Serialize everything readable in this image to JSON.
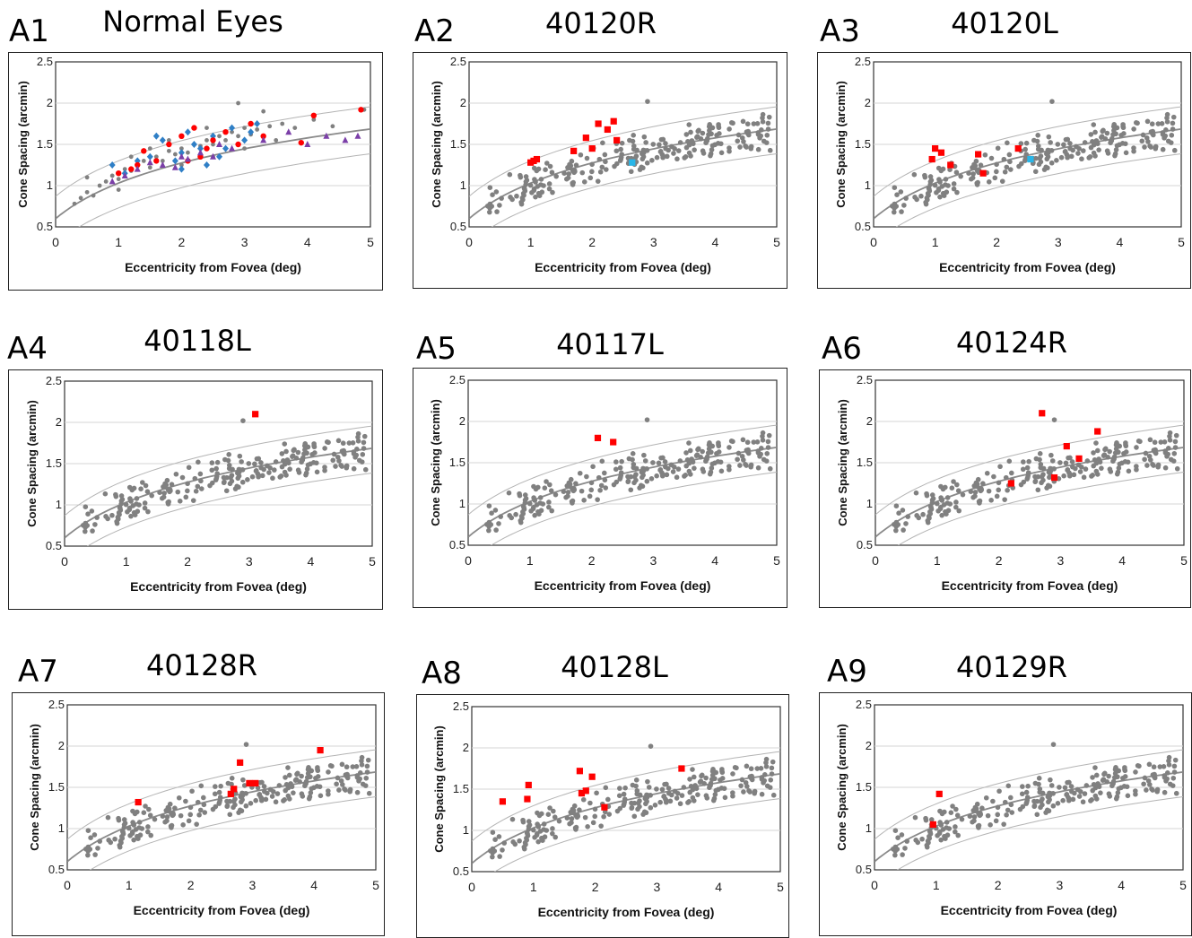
{
  "colors": {
    "normal": "#808080",
    "fit": "#8a8a8a",
    "band": "#b4b4b4",
    "patient": "#ff0000",
    "highlight": "#29b6e8",
    "blue": "#2f7fc6",
    "purple": "#7b3fa8"
  },
  "chart_data": [
    {
      "type": "scatter",
      "panel": "A1",
      "title": "Normal Eyes",
      "xlabel": "Eccentricity from Fovea (deg)",
      "ylabel": "Cone Spacing (arcmin)",
      "xlim": [
        0,
        5
      ],
      "ylim": [
        0.5,
        2.5
      ],
      "xticks": [
        "0",
        "1",
        "2",
        "3",
        "4",
        "5"
      ],
      "yticks": [
        "0.5",
        "1",
        "1.5",
        "2",
        "2.5"
      ],
      "grid": true,
      "series": [
        {
          "marker": "circle",
          "color": "#808080",
          "points": [
            [
              0.3,
              0.78
            ],
            [
              0.4,
              0.85
            ],
            [
              0.5,
              0.92
            ],
            [
              0.6,
              0.88
            ],
            [
              0.7,
              1.0
            ],
            [
              0.8,
              1.05
            ],
            [
              0.9,
              1.12
            ],
            [
              1.0,
              1.08
            ],
            [
              1.1,
              1.2
            ],
            [
              1.2,
              1.18
            ],
            [
              1.3,
              1.25
            ],
            [
              1.4,
              1.3
            ],
            [
              1.5,
              1.22
            ],
            [
              1.6,
              1.35
            ],
            [
              1.7,
              1.3
            ],
            [
              1.8,
              1.42
            ],
            [
              1.9,
              1.38
            ],
            [
              2.0,
              1.45
            ],
            [
              2.1,
              1.4
            ],
            [
              2.2,
              1.5
            ],
            [
              2.3,
              1.48
            ],
            [
              2.4,
              1.55
            ],
            [
              2.5,
              1.5
            ],
            [
              2.6,
              1.6
            ],
            [
              2.7,
              1.55
            ],
            [
              2.8,
              1.65
            ],
            [
              2.9,
              1.6
            ],
            [
              3.0,
              1.7
            ],
            [
              3.1,
              1.62
            ],
            [
              3.2,
              1.68
            ],
            [
              3.4,
              1.72
            ],
            [
              3.6,
              1.75
            ],
            [
              3.8,
              1.7
            ],
            [
              4.1,
              1.8
            ],
            [
              4.4,
              1.72
            ],
            [
              4.9,
              1.92
            ],
            [
              0.5,
              1.1
            ],
            [
              1.0,
              0.95
            ],
            [
              1.5,
              1.45
            ],
            [
              2.0,
              1.25
            ],
            [
              2.5,
              1.35
            ],
            [
              3.0,
              1.45
            ],
            [
              2.9,
              2.0
            ],
            [
              3.5,
              1.55
            ],
            [
              1.2,
              1.35
            ],
            [
              1.8,
              1.55
            ],
            [
              2.4,
              1.7
            ],
            [
              3.3,
              1.9
            ]
          ]
        },
        {
          "marker": "diamond",
          "color": "#2f7fc6",
          "points": [
            [
              0.9,
              1.25
            ],
            [
              1.1,
              1.15
            ],
            [
              1.3,
              1.3
            ],
            [
              1.5,
              1.35
            ],
            [
              1.7,
              1.55
            ],
            [
              1.9,
              1.3
            ],
            [
              2.0,
              1.4
            ],
            [
              2.1,
              1.65
            ],
            [
              2.2,
              1.5
            ],
            [
              2.3,
              1.45
            ],
            [
              2.4,
              1.25
            ],
            [
              2.5,
              1.6
            ],
            [
              2.7,
              1.45
            ],
            [
              2.8,
              1.7
            ],
            [
              3.0,
              1.55
            ],
            [
              3.1,
              1.65
            ],
            [
              3.2,
              1.75
            ],
            [
              1.6,
              1.6
            ],
            [
              2.0,
              1.2
            ],
            [
              2.6,
              1.35
            ]
          ]
        },
        {
          "marker": "circle",
          "color": "#ff0000",
          "points": [
            [
              1.0,
              1.15
            ],
            [
              1.2,
              1.2
            ],
            [
              1.4,
              1.42
            ],
            [
              1.6,
              1.3
            ],
            [
              1.8,
              1.5
            ],
            [
              2.0,
              1.6
            ],
            [
              2.1,
              1.3
            ],
            [
              2.2,
              1.7
            ],
            [
              2.4,
              1.45
            ],
            [
              2.5,
              1.55
            ],
            [
              2.7,
              1.65
            ],
            [
              2.9,
              1.5
            ],
            [
              3.1,
              1.75
            ],
            [
              3.3,
              1.6
            ],
            [
              3.9,
              1.52
            ],
            [
              4.1,
              1.85
            ],
            [
              4.85,
              1.92
            ],
            [
              1.3,
              1.25
            ],
            [
              2.3,
              1.35
            ]
          ]
        },
        {
          "marker": "triangle",
          "color": "#7b3fa8",
          "points": [
            [
              0.9,
              1.05
            ],
            [
              1.1,
              1.12
            ],
            [
              1.3,
              1.2
            ],
            [
              1.5,
              1.28
            ],
            [
              1.7,
              1.25
            ],
            [
              1.9,
              1.22
            ],
            [
              2.1,
              1.32
            ],
            [
              2.3,
              1.4
            ],
            [
              2.5,
              1.35
            ],
            [
              2.8,
              1.45
            ],
            [
              3.3,
              1.55
            ],
            [
              3.7,
              1.65
            ],
            [
              4.0,
              1.5
            ],
            [
              4.3,
              1.6
            ],
            [
              4.6,
              1.55
            ],
            [
              4.8,
              1.6
            ],
            [
              2.6,
              1.5
            ],
            [
              2.0,
              1.35
            ]
          ]
        }
      ]
    },
    {
      "type": "scatter",
      "panel": "A2",
      "title": "40120R",
      "xlabel": "Eccentricity from Fovea (deg)",
      "ylabel": "Cone Spacing (arcmin)",
      "xlim": [
        0,
        5
      ],
      "ylim": [
        0.5,
        2.5
      ],
      "xticks": [
        "0",
        "1",
        "2",
        "3",
        "4",
        "5"
      ],
      "yticks": [
        "0.5",
        "1",
        "1.5",
        "2",
        "2.5"
      ],
      "grid": true,
      "series": [
        {
          "marker": "square",
          "color": "#ff0000",
          "points": [
            [
              1.05,
              1.3
            ],
            [
              1.0,
              1.28
            ],
            [
              1.1,
              1.32
            ],
            [
              1.7,
              1.42
            ],
            [
              1.9,
              1.58
            ],
            [
              2.0,
              1.45
            ],
            [
              2.1,
              1.75
            ],
            [
              2.25,
              1.68
            ],
            [
              2.35,
              1.78
            ],
            [
              2.4,
              1.55
            ]
          ]
        },
        {
          "marker": "square",
          "color": "#29b6e8",
          "points": [
            [
              2.65,
              1.28
            ]
          ]
        }
      ]
    },
    {
      "type": "scatter",
      "panel": "A3",
      "title": "40120L",
      "xlabel": "Eccentricity from Fovea (deg)",
      "ylabel": "Cone Spacing (arcmin)",
      "xlim": [
        0,
        5
      ],
      "ylim": [
        0.5,
        2.5
      ],
      "xticks": [
        "0",
        "1",
        "2",
        "3",
        "4",
        "5"
      ],
      "yticks": [
        "0.5",
        "1",
        "1.5",
        "2",
        "2.5"
      ],
      "grid": true,
      "series": [
        {
          "marker": "square",
          "color": "#ff0000",
          "points": [
            [
              0.95,
              1.32
            ],
            [
              1.0,
              1.45
            ],
            [
              1.1,
              1.4
            ],
            [
              1.25,
              1.25
            ],
            [
              1.7,
              1.38
            ],
            [
              1.78,
              1.15
            ],
            [
              2.35,
              1.45
            ]
          ]
        },
        {
          "marker": "square",
          "color": "#29b6e8",
          "points": [
            [
              2.55,
              1.32
            ]
          ]
        }
      ]
    },
    {
      "type": "scatter",
      "panel": "A4",
      "title": "40118L",
      "xlabel": "Eccentricity from Fovea (deg)",
      "ylabel": "Cone Spacing (arcmin)",
      "xlim": [
        0,
        5
      ],
      "ylim": [
        0.5,
        2.5
      ],
      "xticks": [
        "0",
        "1",
        "2",
        "3",
        "4",
        "5"
      ],
      "yticks": [
        "0.5",
        "1",
        "1.5",
        "2",
        "2.5"
      ],
      "grid": true,
      "series": [
        {
          "marker": "square",
          "color": "#ff0000",
          "points": [
            [
              3.1,
              2.1
            ]
          ]
        }
      ]
    },
    {
      "type": "scatter",
      "panel": "A5",
      "title": "40117L",
      "xlabel": "Eccentricity from Fovea (deg)",
      "ylabel": "Cone Spacing (arcmin)",
      "xlim": [
        0,
        5
      ],
      "ylim": [
        0.5,
        2.5
      ],
      "xticks": [
        "0",
        "1",
        "2",
        "3",
        "4",
        "5"
      ],
      "yticks": [
        "0.5",
        "1",
        "1.5",
        "2",
        "2.5"
      ],
      "grid": true,
      "series": [
        {
          "marker": "square",
          "color": "#ff0000",
          "points": [
            [
              2.1,
              1.8
            ],
            [
              2.35,
              1.75
            ]
          ]
        }
      ]
    },
    {
      "type": "scatter",
      "panel": "A6",
      "title": "40124R",
      "xlabel": "Eccentricity from Fovea (deg)",
      "ylabel": "Cone Spacing (arcmin)",
      "xlim": [
        0,
        5
      ],
      "ylim": [
        0.5,
        2.5
      ],
      "xticks": [
        "0",
        "1",
        "2",
        "3",
        "4",
        "5"
      ],
      "yticks": [
        "0.5",
        "1",
        "1.5",
        "2",
        "2.5"
      ],
      "grid": true,
      "series": [
        {
          "marker": "square",
          "color": "#ff0000",
          "points": [
            [
              2.2,
              1.25
            ],
            [
              2.7,
              2.1
            ],
            [
              2.9,
              1.32
            ],
            [
              3.1,
              1.7
            ],
            [
              3.3,
              1.55
            ],
            [
              3.6,
              1.88
            ]
          ]
        }
      ]
    },
    {
      "type": "scatter",
      "panel": "A7",
      "title": "40128R",
      "xlabel": "Eccentricity from Fovea (deg)",
      "ylabel": "Cone Spacing (arcmin)",
      "xlim": [
        0,
        5
      ],
      "ylim": [
        0.5,
        2.5
      ],
      "xticks": [
        "0",
        "1",
        "2",
        "3",
        "4",
        "5"
      ],
      "yticks": [
        "0.5",
        "1",
        "1.5",
        "2",
        "2.5"
      ],
      "grid": true,
      "series": [
        {
          "marker": "square",
          "color": "#ff0000",
          "points": [
            [
              1.15,
              1.32
            ],
            [
              2.65,
              1.42
            ],
            [
              2.7,
              1.48
            ],
            [
              2.8,
              1.8
            ],
            [
              2.95,
              1.55
            ],
            [
              3.05,
              1.55
            ],
            [
              4.1,
              1.95
            ]
          ]
        }
      ]
    },
    {
      "type": "scatter",
      "panel": "A8",
      "title": "40128L",
      "xlabel": "Eccentricity from Fovea (deg)",
      "ylabel": "Cone Spacing (arcmin)",
      "xlim": [
        0,
        5
      ],
      "ylim": [
        0.5,
        2.5
      ],
      "xticks": [
        "0",
        "1",
        "2",
        "3",
        "4",
        "5"
      ],
      "yticks": [
        "0.5",
        "1",
        "1.5",
        "2",
        "2.5"
      ],
      "grid": true,
      "series": [
        {
          "marker": "square",
          "color": "#ff0000",
          "points": [
            [
              0.5,
              1.35
            ],
            [
              0.9,
              1.38
            ],
            [
              0.92,
              1.55
            ],
            [
              1.75,
              1.72
            ],
            [
              1.78,
              1.45
            ],
            [
              1.85,
              1.48
            ],
            [
              1.95,
              1.65
            ],
            [
              2.15,
              1.28
            ],
            [
              3.4,
              1.75
            ]
          ]
        }
      ]
    },
    {
      "type": "scatter",
      "panel": "A9",
      "title": "40129R",
      "xlabel": "Eccentricity from Fovea (deg)",
      "ylabel": "Cone Spacing (arcmin)",
      "xlim": [
        0,
        5
      ],
      "ylim": [
        0.5,
        2.5
      ],
      "xticks": [
        "0",
        "1",
        "2",
        "3",
        "4",
        "5"
      ],
      "yticks": [
        "0.5",
        "1",
        "1.5",
        "2",
        "2.5"
      ],
      "grid": true,
      "series": [
        {
          "marker": "square",
          "color": "#ff0000",
          "points": [
            [
              0.95,
              1.05
            ],
            [
              1.05,
              1.42
            ]
          ]
        }
      ]
    }
  ],
  "panels": [
    {
      "tag": "A1",
      "title": "Normal Eyes"
    },
    {
      "tag": "A2",
      "title": "40120R"
    },
    {
      "tag": "A3",
      "title": "40120L"
    },
    {
      "tag": "A4",
      "title": "40118L"
    },
    {
      "tag": "A5",
      "title": "40117L"
    },
    {
      "tag": "A6",
      "title": "40124R"
    },
    {
      "tag": "A7",
      "title": "40128R"
    },
    {
      "tag": "A8",
      "title": "40128L"
    },
    {
      "tag": "A9",
      "title": "40129R"
    }
  ]
}
